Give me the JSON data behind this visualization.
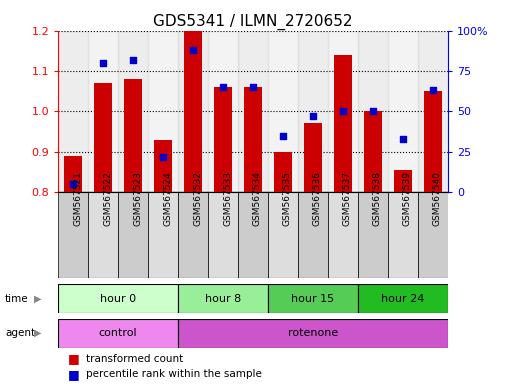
{
  "title": "GDS5341 / ILMN_2720652",
  "samples": [
    "GSM567521",
    "GSM567522",
    "GSM567523",
    "GSM567524",
    "GSM567532",
    "GSM567533",
    "GSM567534",
    "GSM567535",
    "GSM567536",
    "GSM567537",
    "GSM567538",
    "GSM567539",
    "GSM567540"
  ],
  "transformed_count": [
    0.89,
    1.07,
    1.08,
    0.93,
    1.2,
    1.06,
    1.06,
    0.9,
    0.97,
    1.14,
    1.0,
    0.855,
    1.05
  ],
  "percentile_rank": [
    5,
    80,
    82,
    22,
    88,
    65,
    65,
    35,
    47,
    50,
    50,
    33,
    63
  ],
  "ylim_left": [
    0.8,
    1.2
  ],
  "ylim_right": [
    0,
    100
  ],
  "yticks_left": [
    0.8,
    0.9,
    1.0,
    1.1,
    1.2
  ],
  "yticks_right": [
    0,
    25,
    50,
    75,
    100
  ],
  "ytick_labels_right": [
    "0",
    "25",
    "50",
    "75",
    "100%"
  ],
  "bar_color": "#cc0000",
  "dot_color": "#0000cc",
  "bar_width": 0.6,
  "time_groups": [
    {
      "label": "hour 0",
      "start": 0,
      "end": 4,
      "color": "#ccffcc"
    },
    {
      "label": "hour 8",
      "start": 4,
      "end": 7,
      "color": "#99ee99"
    },
    {
      "label": "hour 15",
      "start": 7,
      "end": 10,
      "color": "#55cc55"
    },
    {
      "label": "hour 24",
      "start": 10,
      "end": 13,
      "color": "#22bb22"
    }
  ],
  "agent_groups": [
    {
      "label": "control",
      "start": 0,
      "end": 4,
      "color": "#ee88ee"
    },
    {
      "label": "rotenone",
      "start": 4,
      "end": 13,
      "color": "#cc55cc"
    }
  ],
  "sample_bg_even": "#cccccc",
  "sample_bg_odd": "#dddddd",
  "background_color": "#ffffff"
}
